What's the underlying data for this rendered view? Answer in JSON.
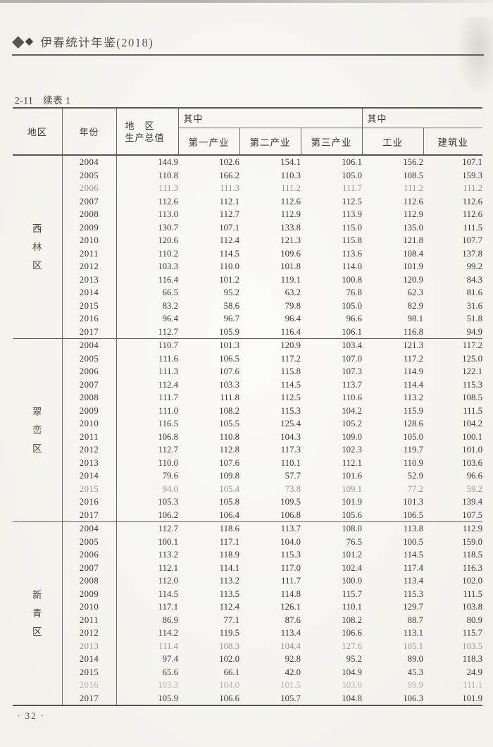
{
  "page": {
    "yearbook_title": "伊春统计年鉴(2018)",
    "caption": "2-11　续表 1",
    "page_number": "· 32 ·"
  },
  "colors": {
    "page_bg": "#f6f5f0",
    "text": "#3b3935",
    "rule": "#57554f",
    "muted_row": "#97948d",
    "strong_muted_row": "#b6b3a9"
  },
  "table": {
    "headers": {
      "region": "地区",
      "year": "年份",
      "gdp_line1": "地　区",
      "gdp_line2": "生产总值",
      "among_left": "其中",
      "among_right": "其中",
      "primary": "第一产业",
      "secondary": "第二产业",
      "tertiary": "第三产业",
      "industry": "工业",
      "construction": "建筑业"
    },
    "sections": [
      {
        "region": "西林区",
        "rows": [
          {
            "year": "2004",
            "values": [
              "144.9",
              "102.6",
              "154.1",
              "106.1",
              "156.2",
              "107.1"
            ]
          },
          {
            "year": "2005",
            "values": [
              "110.8",
              "166.2",
              "110.3",
              "105.0",
              "108.5",
              "159.3"
            ]
          },
          {
            "year": "2006",
            "muted": 1,
            "values": [
              "111.3",
              "111.3",
              "111.2",
              "111.7",
              "111.2",
              "111.2"
            ]
          },
          {
            "year": "2007",
            "values": [
              "112.6",
              "112.1",
              "112.6",
              "112.5",
              "112.6",
              "112.6"
            ]
          },
          {
            "year": "2008",
            "values": [
              "113.0",
              "112.7",
              "112.9",
              "113.9",
              "112.9",
              "112.6"
            ]
          },
          {
            "year": "2009",
            "values": [
              "130.7",
              "107.1",
              "133.8",
              "115.0",
              "135.0",
              "111.5"
            ]
          },
          {
            "year": "2010",
            "values": [
              "120.6",
              "112.4",
              "121.3",
              "115.8",
              "121.8",
              "107.7"
            ]
          },
          {
            "year": "2011",
            "values": [
              "110.2",
              "114.5",
              "109.6",
              "113.6",
              "108.4",
              "137.8"
            ]
          },
          {
            "year": "2012",
            "values": [
              "103.3",
              "110.0",
              "101.8",
              "114.0",
              "101.9",
              "99.2"
            ]
          },
          {
            "year": "2013",
            "values": [
              "116.4",
              "101.2",
              "119.1",
              "100.8",
              "120.9",
              "84.3"
            ]
          },
          {
            "year": "2014",
            "values": [
              "66.5",
              "95.2",
              "63.2",
              "76.8",
              "62.3",
              "81.6"
            ]
          },
          {
            "year": "2015",
            "values": [
              "83.2",
              "58.6",
              "79.8",
              "105.0",
              "82.9",
              "31.6"
            ]
          },
          {
            "year": "2016",
            "values": [
              "96.4",
              "96.7",
              "96.4",
              "96.6",
              "98.1",
              "51.8"
            ]
          },
          {
            "year": "2017",
            "values": [
              "112.7",
              "105.9",
              "116.4",
              "106.1",
              "116.8",
              "94.9"
            ]
          }
        ]
      },
      {
        "region": "翠峦区",
        "rows": [
          {
            "year": "2004",
            "values": [
              "110.7",
              "101.3",
              "120.9",
              "103.4",
              "121.3",
              "117.2"
            ]
          },
          {
            "year": "2005",
            "values": [
              "111.6",
              "106.5",
              "117.2",
              "107.0",
              "117.2",
              "125.0"
            ]
          },
          {
            "year": "2006",
            "values": [
              "111.3",
              "107.6",
              "115.8",
              "107.3",
              "114.9",
              "122.1"
            ]
          },
          {
            "year": "2007",
            "values": [
              "112.4",
              "103.3",
              "114.5",
              "113.7",
              "114.4",
              "115.3"
            ]
          },
          {
            "year": "2008",
            "values": [
              "111.7",
              "111.8",
              "112.5",
              "110.6",
              "113.2",
              "108.5"
            ]
          },
          {
            "year": "2009",
            "values": [
              "111.0",
              "108.2",
              "115.3",
              "104.2",
              "115.9",
              "111.5"
            ]
          },
          {
            "year": "2010",
            "values": [
              "116.5",
              "105.5",
              "125.4",
              "105.2",
              "128.6",
              "104.2"
            ]
          },
          {
            "year": "2011",
            "values": [
              "106.8",
              "110.8",
              "104.3",
              "109.0",
              "105.0",
              "100.1"
            ]
          },
          {
            "year": "2012",
            "values": [
              "112.7",
              "112.8",
              "117.3",
              "102.3",
              "119.7",
              "101.0"
            ]
          },
          {
            "year": "2013",
            "values": [
              "110.0",
              "107.6",
              "110.1",
              "112.1",
              "110.9",
              "103.6"
            ]
          },
          {
            "year": "2014",
            "values": [
              "79.6",
              "109.8",
              "57.7",
              "101.6",
              "52.9",
              "96.6"
            ]
          },
          {
            "year": "2015",
            "muted": 1,
            "values": [
              "94.0",
              "105.4",
              "73.8",
              "109.1",
              "77.2",
              "59.2"
            ]
          },
          {
            "year": "2016",
            "values": [
              "105.3",
              "105.8",
              "109.5",
              "101.9",
              "101.3",
              "139.4"
            ]
          },
          {
            "year": "2017",
            "values": [
              "106.2",
              "106.4",
              "106.8",
              "105.6",
              "106.5",
              "107.5"
            ]
          }
        ]
      },
      {
        "region": "新青区",
        "rows": [
          {
            "year": "2004",
            "values": [
              "112.7",
              "118.6",
              "113.7",
              "108.0",
              "113.8",
              "112.9"
            ]
          },
          {
            "year": "2005",
            "values": [
              "100.1",
              "117.1",
              "104.0",
              "76.5",
              "100.5",
              "159.0"
            ]
          },
          {
            "year": "2006",
            "values": [
              "113.2",
              "118.9",
              "115.3",
              "101.2",
              "114.5",
              "118.5"
            ]
          },
          {
            "year": "2007",
            "values": [
              "112.1",
              "114.1",
              "117.0",
              "102.4",
              "117.4",
              "116.3"
            ]
          },
          {
            "year": "2008",
            "values": [
              "112.0",
              "113.2",
              "111.7",
              "100.0",
              "113.4",
              "102.0"
            ]
          },
          {
            "year": "2009",
            "values": [
              "114.5",
              "113.5",
              "114.8",
              "115.7",
              "115.3",
              "111.5"
            ]
          },
          {
            "year": "2010",
            "values": [
              "117.1",
              "112.4",
              "126.1",
              "110.1",
              "129.7",
              "103.8"
            ]
          },
          {
            "year": "2011",
            "values": [
              "86.9",
              "77.1",
              "87.6",
              "108.2",
              "88.7",
              "80.9"
            ]
          },
          {
            "year": "2012",
            "values": [
              "114.2",
              "119.5",
              "113.4",
              "106.6",
              "113.1",
              "115.7"
            ]
          },
          {
            "year": "2013",
            "muted": 1,
            "values": [
              "111.4",
              "108.3",
              "104.4",
              "127.6",
              "105.1",
              "103.5"
            ]
          },
          {
            "year": "2014",
            "values": [
              "97.4",
              "102.0",
              "92.8",
              "95.2",
              "89.0",
              "118.3"
            ]
          },
          {
            "year": "2015",
            "values": [
              "65.6",
              "66.1",
              "42.0",
              "104.9",
              "45.3",
              "24.9"
            ]
          },
          {
            "year": "2016",
            "muted": 2,
            "values": [
              "103.3",
              "104.0",
              "101.5",
              "103.0",
              "99.9",
              "111.1"
            ]
          },
          {
            "year": "2017",
            "values": [
              "105.9",
              "106.6",
              "105.7",
              "104.8",
              "106.3",
              "101.9"
            ]
          }
        ]
      }
    ]
  }
}
